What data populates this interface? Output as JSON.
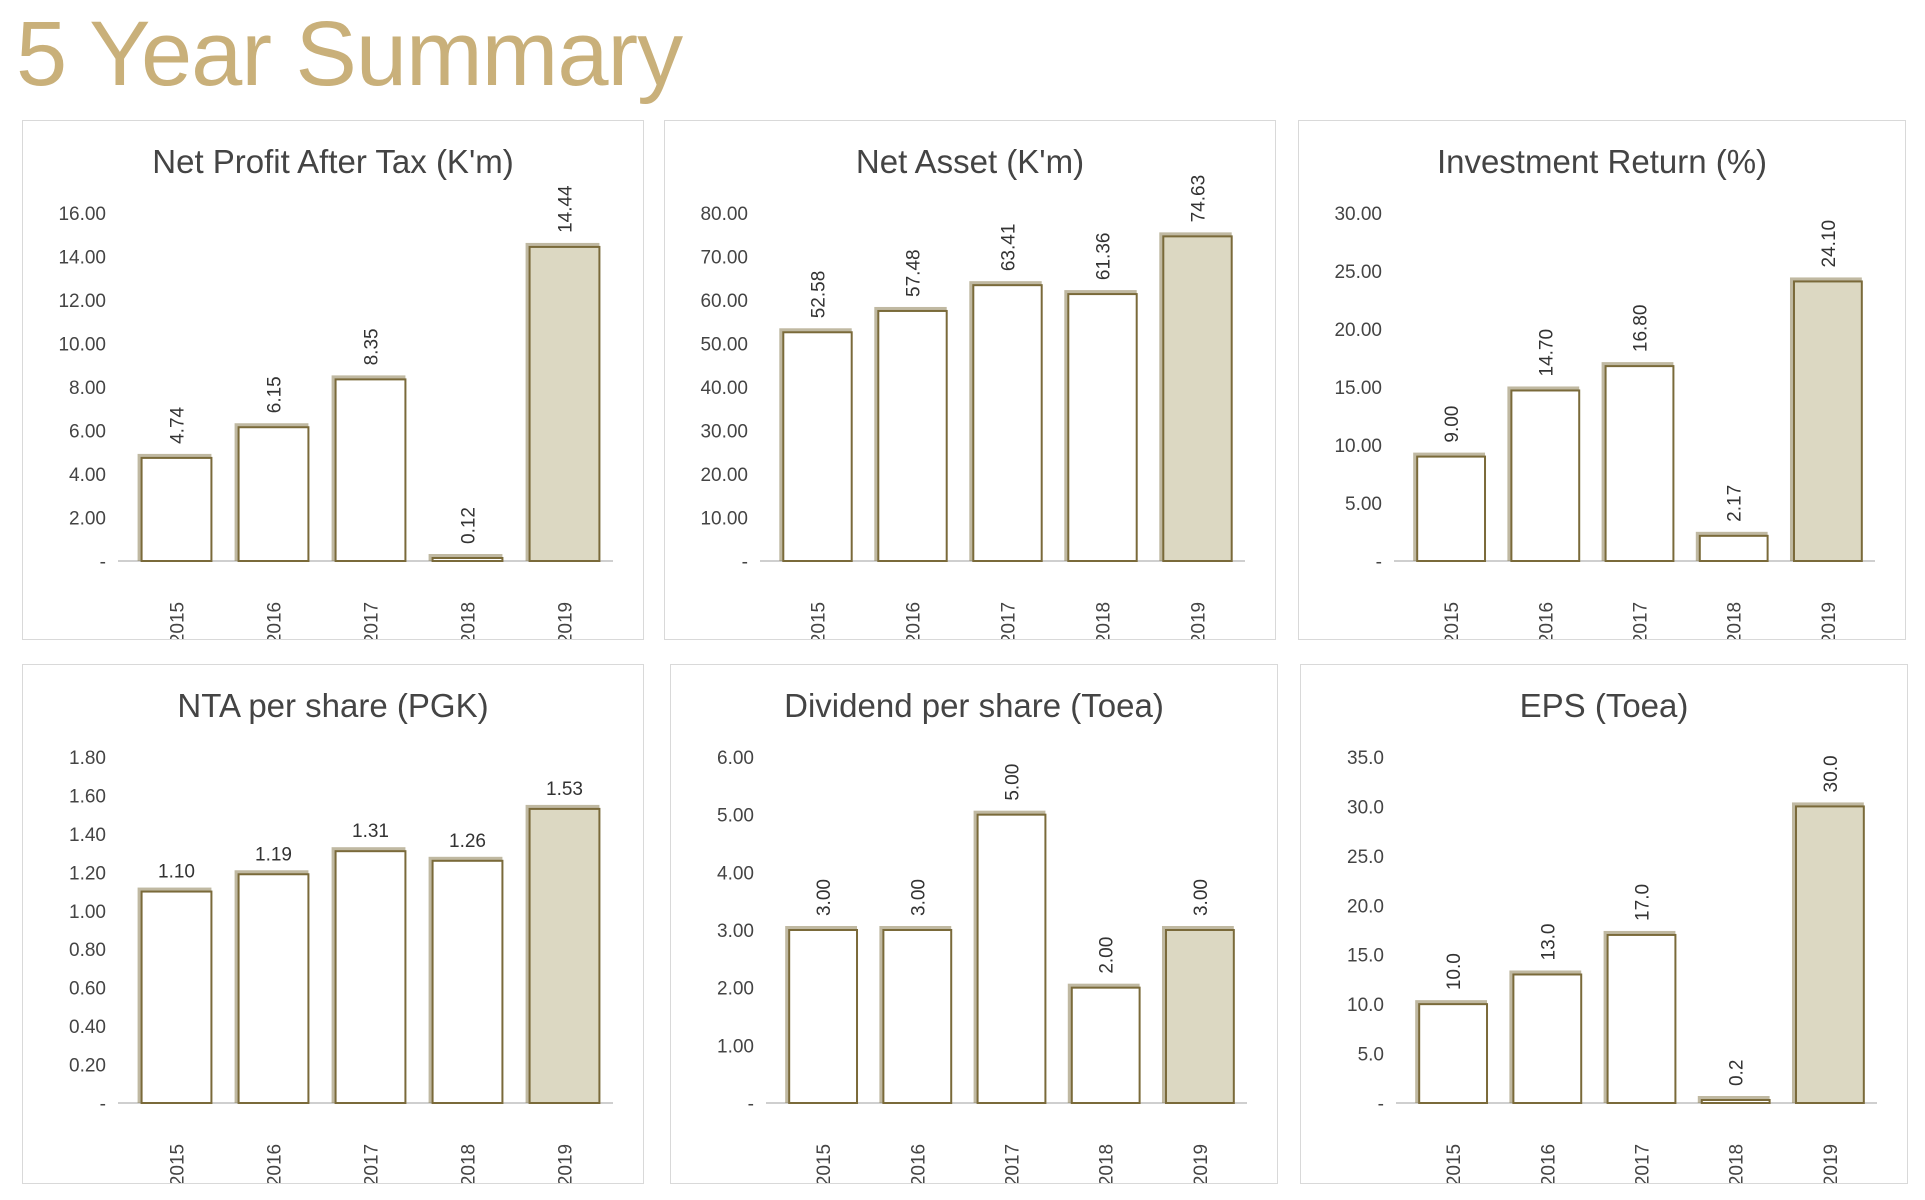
{
  "page": {
    "title": "5 Year Summary"
  },
  "colors": {
    "title": "#c9b07a",
    "bar_fill": "#ffffff",
    "bar_outline": "#7a6a3a",
    "highlight_fill": "#dcd8c2",
    "shadow": "#8c7f55",
    "axis_text": "#444444",
    "panel_border": "#d9d9d9"
  },
  "chart_data": [
    {
      "type": "bar",
      "title": "Net Profit After Tax (K'm)",
      "categories": [
        "2015",
        "2016",
        "2017",
        "2018",
        "2019"
      ],
      "values": [
        4.74,
        6.15,
        8.35,
        0.12,
        14.44
      ],
      "value_labels": [
        "4.74",
        "6.15",
        "8.35",
        "0.12",
        "14.44"
      ],
      "highlight_index": 4,
      "ylim": [
        0,
        16
      ],
      "yticks": [
        0,
        2,
        4,
        6,
        8,
        10,
        12,
        14,
        16
      ],
      "ytick_labels": [
        "-",
        "2.00",
        "4.00",
        "6.00",
        "8.00",
        "10.00",
        "12.00",
        "14.00",
        "16.00"
      ],
      "label_rotated": true
    },
    {
      "type": "bar",
      "title": "Net Asset (K'm)",
      "categories": [
        "2015",
        "2016",
        "2017",
        "2018",
        "2019"
      ],
      "values": [
        52.58,
        57.48,
        63.41,
        61.36,
        74.63
      ],
      "value_labels": [
        "52.58",
        "57.48",
        "63.41",
        "61.36",
        "74.63"
      ],
      "highlight_index": 4,
      "ylim": [
        0,
        80
      ],
      "yticks": [
        0,
        10,
        20,
        30,
        40,
        50,
        60,
        70,
        80
      ],
      "ytick_labels": [
        "-",
        "10.00",
        "20.00",
        "30.00",
        "40.00",
        "50.00",
        "60.00",
        "70.00",
        "80.00"
      ],
      "label_rotated": true
    },
    {
      "type": "bar",
      "title": "Investment Return (%)",
      "categories": [
        "2015",
        "2016",
        "2017",
        "2018",
        "2019"
      ],
      "values": [
        9.0,
        14.7,
        16.8,
        2.17,
        24.1
      ],
      "value_labels": [
        "9.00",
        "14.70",
        "16.80",
        "2.17",
        "24.10"
      ],
      "highlight_index": 4,
      "ylim": [
        0,
        30
      ],
      "yticks": [
        0,
        5,
        10,
        15,
        20,
        25,
        30
      ],
      "ytick_labels": [
        "-",
        "5.00",
        "10.00",
        "15.00",
        "20.00",
        "25.00",
        "30.00"
      ],
      "label_rotated": true
    },
    {
      "type": "bar",
      "title": "NTA per share (PGK)",
      "categories": [
        "2015",
        "2016",
        "2017",
        "2018",
        "2019"
      ],
      "values": [
        1.1,
        1.19,
        1.31,
        1.26,
        1.53
      ],
      "value_labels": [
        "1.10",
        "1.19",
        "1.31",
        "1.26",
        "1.53"
      ],
      "highlight_index": 4,
      "ylim": [
        0,
        1.8
      ],
      "yticks": [
        0,
        0.2,
        0.4,
        0.6,
        0.8,
        1.0,
        1.2,
        1.4,
        1.6,
        1.8
      ],
      "ytick_labels": [
        "-",
        "0.20",
        "0.40",
        "0.60",
        "0.80",
        "1.00",
        "1.20",
        "1.40",
        "1.60",
        "1.80"
      ],
      "label_rotated": false
    },
    {
      "type": "bar",
      "title": "Dividend per share (Toea)",
      "categories": [
        "2015",
        "2016",
        "2017",
        "2018",
        "2019"
      ],
      "values": [
        3.0,
        3.0,
        5.0,
        2.0,
        3.0
      ],
      "value_labels": [
        "3.00",
        "3.00",
        "5.00",
        "2.00",
        "3.00"
      ],
      "highlight_index": 4,
      "ylim": [
        0,
        6
      ],
      "yticks": [
        0,
        1,
        2,
        3,
        4,
        5,
        6
      ],
      "ytick_labels": [
        "-",
        "1.00",
        "2.00",
        "3.00",
        "4.00",
        "5.00",
        "6.00"
      ],
      "label_rotated": true
    },
    {
      "type": "bar",
      "title": "EPS (Toea)",
      "categories": [
        "2015",
        "2016",
        "2017",
        "2018",
        "2019"
      ],
      "values": [
        10.0,
        13.0,
        17.0,
        0.2,
        30.0
      ],
      "value_labels": [
        "10.0",
        "13.0",
        "17.0",
        "0.2",
        "30.0"
      ],
      "highlight_index": 4,
      "ylim": [
        0,
        35
      ],
      "yticks": [
        0,
        5,
        10,
        15,
        20,
        25,
        30,
        35
      ],
      "ytick_labels": [
        "-",
        "5.0",
        "10.0",
        "15.0",
        "20.0",
        "25.0",
        "30.0",
        "35.0"
      ],
      "label_rotated": true
    }
  ]
}
